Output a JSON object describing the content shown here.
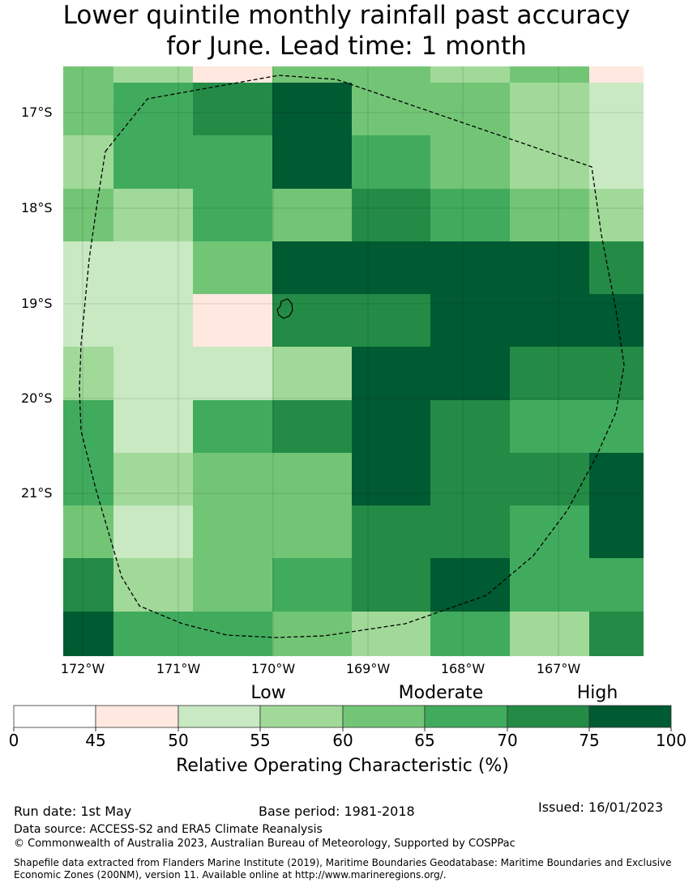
{
  "title": {
    "line1": "Lower quintile monthly rainfall past accuracy",
    "line2": "for June. Lead time: 1 month"
  },
  "map": {
    "lat_labels": [
      "17°S",
      "18°S",
      "19°S",
      "20°S",
      "21°S"
    ],
    "lon_labels": [
      "172°W",
      "171°W",
      "170°W",
      "169°W",
      "168°W",
      "167°W"
    ],
    "grid_values": [
      [
        62,
        57,
        48,
        62,
        62,
        57,
        62,
        48
      ],
      [
        62,
        67,
        72,
        80,
        62,
        62,
        57,
        52
      ],
      [
        57,
        67,
        67,
        80,
        67,
        62,
        57,
        52
      ],
      [
        62,
        57,
        67,
        62,
        72,
        67,
        62,
        57
      ],
      [
        52,
        52,
        62,
        80,
        80,
        80,
        80,
        72
      ],
      [
        52,
        52,
        48,
        72,
        72,
        80,
        80,
        80
      ],
      [
        57,
        52,
        52,
        57,
        80,
        80,
        72,
        72
      ],
      [
        67,
        52,
        67,
        72,
        80,
        72,
        67,
        67
      ],
      [
        67,
        57,
        62,
        62,
        80,
        72,
        72,
        80
      ],
      [
        62,
        52,
        62,
        62,
        72,
        72,
        67,
        80
      ],
      [
        72,
        57,
        62,
        67,
        72,
        80,
        67,
        67
      ],
      [
        80,
        67,
        67,
        62,
        57,
        67,
        57,
        72
      ]
    ],
    "island_label": "",
    "eez_boundary": "dashed"
  },
  "legend": {
    "categories": [
      "Low",
      "Moderate",
      "High"
    ],
    "bins": [
      {
        "from": 0,
        "to": 45,
        "color": "#ffffff"
      },
      {
        "from": 45,
        "to": 50,
        "color": "#fee8e0"
      },
      {
        "from": 50,
        "to": 55,
        "color": "#c8e9c2"
      },
      {
        "from": 55,
        "to": 60,
        "color": "#a1d999"
      },
      {
        "from": 60,
        "to": 65,
        "color": "#73c576"
      },
      {
        "from": 65,
        "to": 70,
        "color": "#41ab5d"
      },
      {
        "from": 70,
        "to": 75,
        "color": "#238b45"
      },
      {
        "from": 75,
        "to": 100,
        "color": "#005a32"
      }
    ],
    "ticks": [
      "0",
      "45",
      "50",
      "55",
      "60",
      "65",
      "70",
      "75",
      "100"
    ],
    "title": "Relative Operating Characteristic (%)"
  },
  "footer": {
    "run_date": "Run date: 1st May",
    "base_period": "Base period: 1981-2018",
    "issued": "Issued: 16/01/2023",
    "data_source": "Data source: ACCESS-S2 and ERA5 Climate Reanalysis",
    "copyright": "© Commonwealth of Australia 2023, Australian Bureau of Meteorology, Supported by COSPPac",
    "shapefile_line1": "Shapefile data extracted from Flanders Marine Institute (2019), Maritime Boundaries Geodatabase: Maritime Boundaries and Exclusive",
    "shapefile_line2": "Economic Zones (200NM), version 11. Available online at http://www.marineregions.org/."
  }
}
